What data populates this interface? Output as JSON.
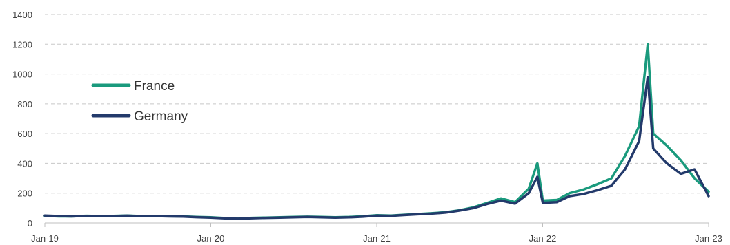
{
  "chart_data": {
    "type": "line",
    "title": "",
    "xlabel": "",
    "ylabel": "",
    "x_ticks": [
      "Jan-19",
      "Jan-20",
      "Jan-21",
      "Jan-22",
      "Jan-23"
    ],
    "x_range": [
      "2019-01",
      "2023-01"
    ],
    "ylim": [
      0,
      1400
    ],
    "y_ticks": [
      0,
      200,
      400,
      600,
      800,
      1000,
      1200,
      1400
    ],
    "y_tick_labels": [
      "0",
      "200",
      "400",
      "600",
      "800",
      "1000",
      "1200",
      "1400"
    ],
    "grid": "horizontal dashed",
    "legend_position": "upper-left",
    "series": [
      {
        "name": "France",
        "color": "#1a9a7d",
        "points": [
          [
            "2019-01-01",
            48
          ],
          [
            "2019-02-01",
            44
          ],
          [
            "2019-03-01",
            44
          ],
          [
            "2019-04-01",
            48
          ],
          [
            "2019-05-01",
            46
          ],
          [
            "2019-06-01",
            47
          ],
          [
            "2019-07-01",
            50
          ],
          [
            "2019-08-01",
            46
          ],
          [
            "2019-09-01",
            47
          ],
          [
            "2019-10-01",
            45
          ],
          [
            "2019-11-01",
            44
          ],
          [
            "2019-12-01",
            40
          ],
          [
            "2020-01-01",
            38
          ],
          [
            "2020-02-01",
            33
          ],
          [
            "2020-03-01",
            30
          ],
          [
            "2020-04-01",
            34
          ],
          [
            "2020-05-01",
            36
          ],
          [
            "2020-06-01",
            38
          ],
          [
            "2020-07-01",
            40
          ],
          [
            "2020-08-01",
            42
          ],
          [
            "2020-09-01",
            40
          ],
          [
            "2020-10-01",
            38
          ],
          [
            "2020-11-01",
            40
          ],
          [
            "2020-12-01",
            45
          ],
          [
            "2021-01-01",
            52
          ],
          [
            "2021-02-01",
            50
          ],
          [
            "2021-03-01",
            55
          ],
          [
            "2021-04-01",
            60
          ],
          [
            "2021-05-01",
            65
          ],
          [
            "2021-06-01",
            72
          ],
          [
            "2021-07-01",
            85
          ],
          [
            "2021-08-01",
            105
          ],
          [
            "2021-09-01",
            135
          ],
          [
            "2021-10-01",
            165
          ],
          [
            "2021-11-01",
            140
          ],
          [
            "2021-12-01",
            230
          ],
          [
            "2021-12-20",
            400
          ],
          [
            "2022-01-01",
            150
          ],
          [
            "2022-02-01",
            155
          ],
          [
            "2022-03-01",
            200
          ],
          [
            "2022-04-01",
            225
          ],
          [
            "2022-05-01",
            260
          ],
          [
            "2022-06-01",
            300
          ],
          [
            "2022-07-01",
            450
          ],
          [
            "2022-08-01",
            650
          ],
          [
            "2022-08-20",
            1200
          ],
          [
            "2022-09-01",
            600
          ],
          [
            "2022-10-01",
            520
          ],
          [
            "2022-11-01",
            420
          ],
          [
            "2022-12-01",
            300
          ],
          [
            "2023-01-01",
            210
          ]
        ]
      },
      {
        "name": "Germany",
        "color": "#233a6b",
        "points": [
          [
            "2019-01-01",
            50
          ],
          [
            "2019-02-01",
            46
          ],
          [
            "2019-03-01",
            44
          ],
          [
            "2019-04-01",
            47
          ],
          [
            "2019-05-01",
            46
          ],
          [
            "2019-06-01",
            46
          ],
          [
            "2019-07-01",
            49
          ],
          [
            "2019-08-01",
            45
          ],
          [
            "2019-09-01",
            46
          ],
          [
            "2019-10-01",
            44
          ],
          [
            "2019-11-01",
            43
          ],
          [
            "2019-12-01",
            39
          ],
          [
            "2020-01-01",
            36
          ],
          [
            "2020-02-01",
            31
          ],
          [
            "2020-03-01",
            28
          ],
          [
            "2020-04-01",
            32
          ],
          [
            "2020-05-01",
            34
          ],
          [
            "2020-06-01",
            36
          ],
          [
            "2020-07-01",
            38
          ],
          [
            "2020-08-01",
            40
          ],
          [
            "2020-09-01",
            38
          ],
          [
            "2020-10-01",
            36
          ],
          [
            "2020-11-01",
            38
          ],
          [
            "2020-12-01",
            42
          ],
          [
            "2021-01-01",
            50
          ],
          [
            "2021-02-01",
            48
          ],
          [
            "2021-03-01",
            53
          ],
          [
            "2021-04-01",
            58
          ],
          [
            "2021-05-01",
            63
          ],
          [
            "2021-06-01",
            70
          ],
          [
            "2021-07-01",
            83
          ],
          [
            "2021-08-01",
            100
          ],
          [
            "2021-09-01",
            128
          ],
          [
            "2021-10-01",
            150
          ],
          [
            "2021-11-01",
            130
          ],
          [
            "2021-12-01",
            200
          ],
          [
            "2021-12-20",
            310
          ],
          [
            "2022-01-01",
            135
          ],
          [
            "2022-02-01",
            140
          ],
          [
            "2022-03-01",
            180
          ],
          [
            "2022-04-01",
            195
          ],
          [
            "2022-05-01",
            220
          ],
          [
            "2022-06-01",
            250
          ],
          [
            "2022-07-01",
            360
          ],
          [
            "2022-08-01",
            550
          ],
          [
            "2022-08-20",
            980
          ],
          [
            "2022-09-01",
            500
          ],
          [
            "2022-10-01",
            400
          ],
          [
            "2022-11-01",
            330
          ],
          [
            "2022-12-01",
            360
          ],
          [
            "2023-01-01",
            180
          ]
        ]
      }
    ]
  }
}
